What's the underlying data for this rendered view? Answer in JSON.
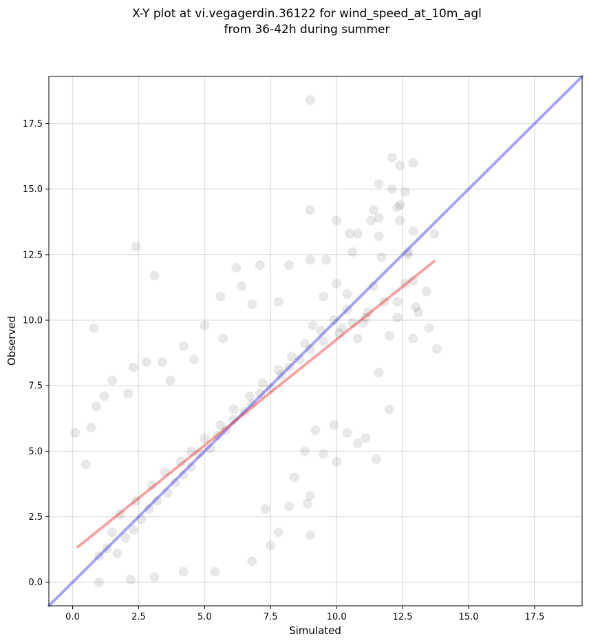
{
  "chart_data": {
    "type": "scatter",
    "title_lines": [
      "X-Y plot at vi.vegagerdin.36122 for wind_speed_at_10m_agl",
      "from 36-42h during summer"
    ],
    "xlabel": "Simulated",
    "ylabel": "Observed",
    "xlim": [
      -0.9,
      19.3
    ],
    "ylim": [
      -0.9,
      19.3
    ],
    "x_ticks": [
      0.0,
      2.5,
      5.0,
      7.5,
      10.0,
      12.5,
      15.0,
      17.5
    ],
    "y_ticks": [
      0.0,
      2.5,
      5.0,
      7.5,
      10.0,
      12.5,
      15.0,
      17.5
    ],
    "x_tick_labels": [
      "0.0",
      "2.5",
      "5.0",
      "7.5",
      "10.0",
      "12.5",
      "15.0",
      "17.5"
    ],
    "y_tick_labels": [
      "0.0",
      "2.5",
      "5.0",
      "7.5",
      "10.0",
      "12.5",
      "15.0",
      "17.5"
    ],
    "grid": true,
    "point_color": "#000000",
    "point_opacity": 0.09,
    "series": [
      {
        "type": "scatter",
        "points": [
          [
            9.0,
            18.4
          ],
          [
            12.1,
            16.2
          ],
          [
            12.9,
            16.0
          ],
          [
            12.4,
            15.9
          ],
          [
            11.6,
            15.2
          ],
          [
            12.1,
            15.0
          ],
          [
            12.6,
            14.9
          ],
          [
            12.4,
            14.4
          ],
          [
            12.3,
            14.3
          ],
          [
            11.4,
            14.2
          ],
          [
            9.0,
            14.2
          ],
          [
            11.6,
            13.9
          ],
          [
            11.3,
            13.8
          ],
          [
            12.4,
            13.8
          ],
          [
            10.0,
            13.8
          ],
          [
            12.9,
            13.4
          ],
          [
            13.7,
            13.3
          ],
          [
            10.5,
            13.3
          ],
          [
            10.8,
            13.3
          ],
          [
            11.6,
            13.2
          ],
          [
            2.4,
            12.8
          ],
          [
            12.7,
            12.6
          ],
          [
            10.6,
            12.6
          ],
          [
            11.7,
            12.4
          ],
          [
            9.0,
            12.3
          ],
          [
            12.7,
            12.5
          ],
          [
            9.6,
            12.3
          ],
          [
            7.1,
            12.1
          ],
          [
            8.2,
            12.1
          ],
          [
            6.2,
            12.0
          ],
          [
            3.1,
            11.7
          ],
          [
            12.9,
            11.5
          ],
          [
            12.6,
            11.4
          ],
          [
            11.4,
            11.3
          ],
          [
            10.0,
            11.4
          ],
          [
            6.4,
            11.3
          ],
          [
            13.4,
            11.1
          ],
          [
            10.4,
            11.0
          ],
          [
            9.5,
            10.9
          ],
          [
            6.8,
            10.6
          ],
          [
            7.8,
            10.7
          ],
          [
            5.6,
            10.9
          ],
          [
            12.3,
            10.7
          ],
          [
            13.0,
            10.5
          ],
          [
            13.1,
            10.3
          ],
          [
            11.1,
            10.1
          ],
          [
            12.3,
            10.1
          ],
          [
            11.0,
            9.9
          ],
          [
            9.1,
            9.8
          ],
          [
            10.2,
            9.7
          ],
          [
            13.5,
            9.7
          ],
          [
            0.8,
            9.7
          ],
          [
            5.0,
            9.8
          ],
          [
            12.0,
            9.4
          ],
          [
            10.8,
            9.3
          ],
          [
            12.9,
            9.3
          ],
          [
            5.7,
            9.3
          ],
          [
            13.8,
            8.9
          ],
          [
            4.2,
            9.0
          ],
          [
            2.3,
            8.2
          ],
          [
            2.8,
            8.4
          ],
          [
            3.4,
            8.4
          ],
          [
            4.6,
            8.5
          ],
          [
            11.6,
            8.0
          ],
          [
            1.5,
            7.7
          ],
          [
            3.7,
            7.7
          ],
          [
            1.2,
            7.1
          ],
          [
            2.1,
            7.2
          ],
          [
            0.9,
            6.7
          ],
          [
            12.0,
            6.6
          ],
          [
            11.5,
            4.7
          ],
          [
            9.0,
            1.8
          ],
          [
            7.8,
            1.9
          ],
          [
            7.5,
            1.4
          ],
          [
            6.8,
            0.8
          ],
          [
            4.2,
            0.4
          ],
          [
            5.4,
            0.4
          ],
          [
            3.1,
            0.2
          ],
          [
            1.0,
            0.0
          ],
          [
            2.2,
            0.1
          ],
          [
            0.1,
            5.7
          ],
          [
            0.7,
            5.9
          ],
          [
            0.5,
            4.5
          ],
          [
            8.4,
            4.0
          ],
          [
            9.0,
            3.3
          ],
          [
            8.9,
            3.0
          ],
          [
            8.2,
            2.9
          ],
          [
            7.3,
            2.8
          ],
          [
            9.5,
            4.9
          ],
          [
            10.0,
            4.6
          ],
          [
            8.8,
            5.0
          ],
          [
            10.4,
            5.7
          ],
          [
            9.2,
            5.8
          ],
          [
            9.9,
            6.0
          ],
          [
            10.8,
            5.3
          ],
          [
            11.1,
            5.5
          ],
          [
            1.5,
            1.9
          ],
          [
            1.8,
            2.6
          ],
          [
            2.4,
            3.1
          ],
          [
            3.0,
            3.7
          ],
          [
            3.5,
            4.2
          ],
          [
            4.1,
            4.6
          ],
          [
            4.5,
            5.0
          ],
          [
            5.0,
            5.5
          ],
          [
            5.6,
            6.0
          ],
          [
            6.1,
            6.6
          ],
          [
            6.7,
            7.1
          ],
          [
            7.2,
            7.6
          ],
          [
            7.8,
            8.1
          ],
          [
            8.3,
            8.6
          ],
          [
            8.8,
            9.1
          ],
          [
            9.4,
            9.6
          ],
          [
            9.9,
            10.0
          ],
          [
            10.4,
            10.4
          ],
          [
            1.0,
            1.0
          ],
          [
            1.3,
            1.3
          ],
          [
            1.7,
            1.1
          ],
          [
            2.0,
            1.7
          ],
          [
            2.3,
            2.0
          ],
          [
            2.6,
            2.4
          ],
          [
            2.9,
            2.8
          ],
          [
            3.2,
            3.1
          ],
          [
            3.6,
            3.4
          ],
          [
            3.9,
            3.8
          ],
          [
            4.2,
            4.1
          ],
          [
            4.5,
            4.4
          ],
          [
            4.8,
            4.9
          ],
          [
            5.2,
            5.1
          ],
          [
            5.5,
            5.6
          ],
          [
            5.8,
            5.8
          ],
          [
            6.1,
            6.2
          ],
          [
            6.5,
            6.5
          ],
          [
            6.8,
            6.8
          ],
          [
            7.1,
            7.2
          ],
          [
            7.5,
            7.4
          ],
          [
            7.9,
            7.9
          ],
          [
            8.2,
            8.2
          ],
          [
            8.6,
            8.5
          ],
          [
            9.0,
            8.9
          ],
          [
            9.5,
            9.2
          ],
          [
            10.1,
            9.5
          ],
          [
            10.6,
            9.9
          ],
          [
            11.2,
            10.3
          ],
          [
            11.8,
            10.7
          ]
        ]
      },
      {
        "type": "line",
        "role": "identity",
        "color": "#3333ee",
        "x": [
          -0.9,
          19.3
        ],
        "y": [
          -0.9,
          19.3
        ]
      },
      {
        "type": "line",
        "role": "fit",
        "color": "#ee3333",
        "x": [
          0.2,
          13.7
        ],
        "y": [
          1.35,
          12.25
        ]
      }
    ]
  }
}
